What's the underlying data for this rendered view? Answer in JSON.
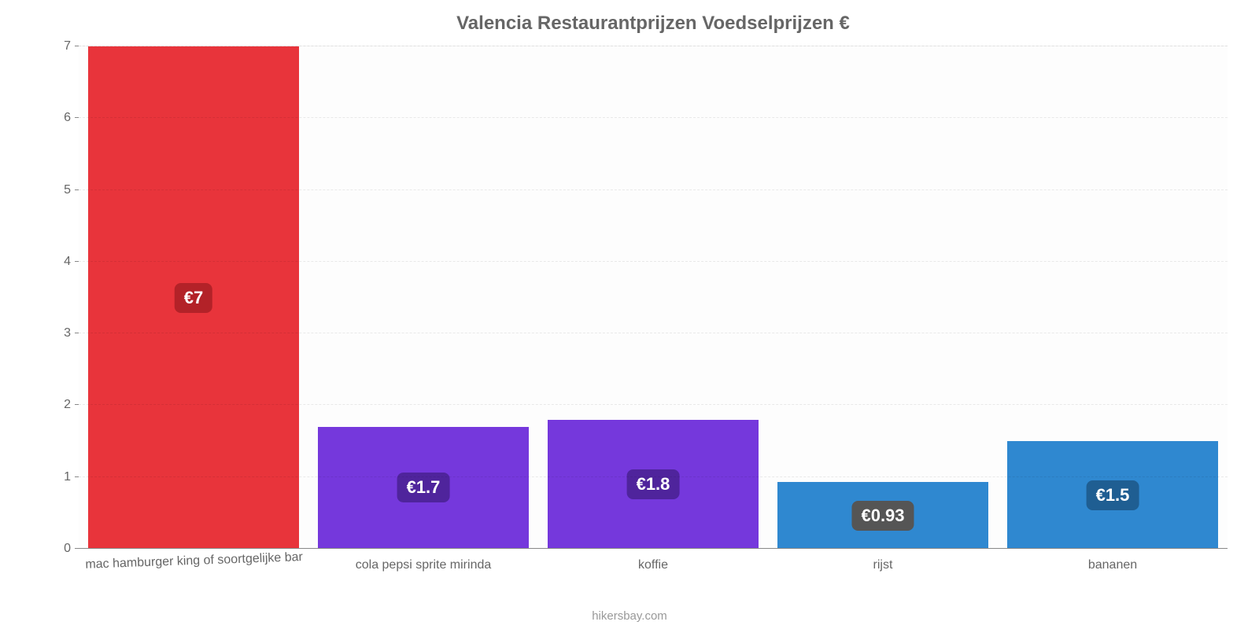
{
  "chart": {
    "type": "bar",
    "title": "Valencia Restaurantprijzen Voedselprijzen €",
    "title_color": "#666666",
    "title_fontsize": 24,
    "background_color": "#fdfdfd",
    "grid_color": "rgba(0,0,0,0.08)",
    "axis_color": "#888888",
    "label_color": "#666666",
    "label_fontsize": 16,
    "value_fontsize": 22,
    "ylim": [
      0,
      7
    ],
    "ytick_step": 1,
    "yticks": [
      "0",
      "1",
      "2",
      "3",
      "4",
      "5",
      "6",
      "7"
    ],
    "bar_width": 0.92,
    "categories": [
      "mac hamburger king of soortgelijke bar",
      "cola pepsi sprite mirinda",
      "koffie",
      "rijst",
      "bananen"
    ],
    "values": [
      7,
      1.7,
      1.8,
      0.93,
      1.5
    ],
    "value_labels": [
      "€7",
      "€1.7",
      "€1.8",
      "€0.93",
      "€1.5"
    ],
    "bar_colors": [
      "#e8343b",
      "#7538dc",
      "#7538dc",
      "#2f88d0",
      "#2f88d0"
    ],
    "badge_colors": [
      "#b32228",
      "#4f249c",
      "#4f249c",
      "#555555",
      "#1f5e92"
    ],
    "attribution": "hikersbay.com",
    "x_label_rotate_first": true
  }
}
